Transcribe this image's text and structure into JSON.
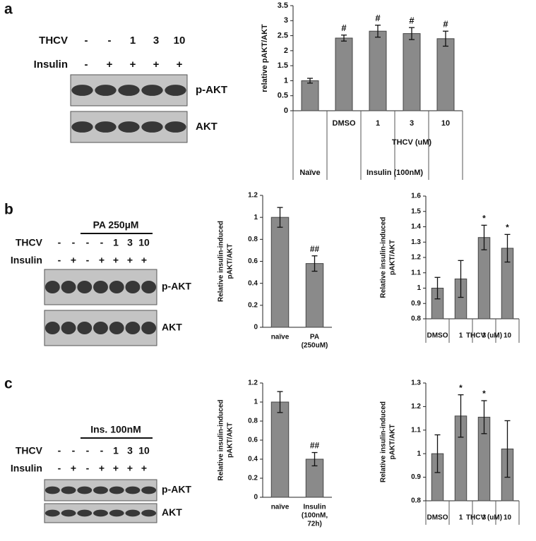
{
  "panels": [
    {
      "label": "a",
      "rows": [
        {
          "name": "THCV",
          "lanes": [
            "-",
            "-",
            "1",
            "3",
            "10"
          ]
        },
        {
          "name": "Insulin",
          "lanes": [
            "-",
            "+",
            "+",
            "+",
            "+"
          ]
        }
      ],
      "bands": [
        "p-AKT",
        "AKT"
      ]
    },
    {
      "label": "b",
      "header": "PA 250µM",
      "rows": [
        {
          "name": "THCV",
          "lanes": [
            "-",
            "-",
            "-",
            "-",
            "1",
            "3",
            "10"
          ]
        },
        {
          "name": "Insulin",
          "lanes": [
            "-",
            "+",
            "-",
            "+",
            "+",
            "+",
            "+"
          ]
        }
      ],
      "bands": [
        "p-AKT",
        "AKT"
      ]
    },
    {
      "label": "c",
      "header": "Ins. 100nM",
      "rows": [
        {
          "name": "THCV",
          "lanes": [
            "-",
            "-",
            "-",
            "-",
            "1",
            "3",
            "10"
          ]
        },
        {
          "name": "Insulin",
          "lanes": [
            "-",
            "+",
            "-",
            "+",
            "+",
            "+",
            "+"
          ]
        }
      ],
      "bands": [
        "p-AKT",
        "AKT"
      ]
    }
  ],
  "chart_data": [
    {
      "type": "bar",
      "ylabel": [
        "relative pAKT/AKT"
      ],
      "categories": [
        [
          "Naïve"
        ],
        [
          "DMSO"
        ],
        [
          "1"
        ],
        [
          "3"
        ],
        [
          "10"
        ]
      ],
      "groups": [
        {
          "label": "THCV (uM)",
          "first": 2,
          "last": 4
        },
        {
          "label": "Insulin (100nM)",
          "first": 1,
          "last": 4
        }
      ],
      "values": [
        1,
        2.42,
        2.65,
        2.57,
        2.4
      ],
      "errors": [
        0.08,
        0.1,
        0.2,
        0.2,
        0.25
      ],
      "bar_labels": [
        null,
        "#",
        "#",
        "#",
        "#"
      ],
      "color": "#8a8a8a",
      "ylim": [
        0,
        3.5
      ],
      "yticks": [
        0,
        0.5,
        1,
        1.5,
        2,
        2.5,
        3,
        3.5
      ]
    },
    {
      "type": "bar",
      "ylabel": [
        "Relative insulin-induced",
        "pAKT/AKT"
      ],
      "categories": [
        [
          "naïve"
        ],
        [
          "PA",
          "(250uM)"
        ]
      ],
      "groups": [],
      "values": [
        1,
        0.58
      ],
      "errors": [
        0.09,
        0.07
      ],
      "bar_labels": [
        null,
        "##"
      ],
      "color": "#8a8a8a",
      "ylim": [
        0,
        1.2
      ],
      "yticks": [
        0,
        0.2,
        0.4,
        0.6,
        0.8,
        1,
        1.2
      ]
    },
    {
      "type": "bar",
      "ylabel": [
        "Relative insulin-induced",
        "pAKT/AKT"
      ],
      "categories": [
        [
          "DMSO"
        ],
        [
          "1"
        ],
        [
          "3"
        ],
        [
          "10"
        ]
      ],
      "groups": [
        {
          "label": "THCV (uM)",
          "first": 1,
          "last": 3
        }
      ],
      "values": [
        1,
        1.06,
        1.33,
        1.26
      ],
      "errors": [
        0.07,
        0.12,
        0.08,
        0.09
      ],
      "bar_labels": [
        null,
        null,
        "*",
        "*"
      ],
      "color": "#8a8a8a",
      "ylim": [
        0.8,
        1.6
      ],
      "yticks": [
        0.8,
        0.9,
        1,
        1.1,
        1.2,
        1.3,
        1.4,
        1.5,
        1.6
      ]
    },
    {
      "type": "bar",
      "ylabel": [
        "Relative insulin-induced",
        "pAKT/AKT"
      ],
      "categories": [
        [
          "naïve"
        ],
        [
          "Insulin",
          "(100nM,",
          "72h)"
        ]
      ],
      "groups": [],
      "values": [
        1,
        0.4
      ],
      "errors": [
        0.11,
        0.07
      ],
      "bar_labels": [
        null,
        "##"
      ],
      "color": "#8a8a8a",
      "ylim": [
        0,
        1.2
      ],
      "yticks": [
        0,
        0.2,
        0.4,
        0.6,
        0.8,
        1,
        1.2
      ]
    },
    {
      "type": "bar",
      "ylabel": [
        "Relative insulin-induced",
        "pAKT/AKT"
      ],
      "categories": [
        [
          "DMSO"
        ],
        [
          "1"
        ],
        [
          "3"
        ],
        [
          "10"
        ]
      ],
      "groups": [
        {
          "label": "THCV (uM)",
          "first": 1,
          "last": 3
        }
      ],
      "values": [
        1,
        1.16,
        1.155,
        1.02
      ],
      "errors": [
        0.08,
        0.09,
        0.07,
        0.12
      ],
      "bar_labels": [
        null,
        "*",
        "*",
        null
      ],
      "color": "#8a8a8a",
      "ylim": [
        0.8,
        1.3
      ],
      "yticks": [
        0.8,
        0.9,
        1,
        1.1,
        1.2,
        1.3
      ]
    }
  ]
}
